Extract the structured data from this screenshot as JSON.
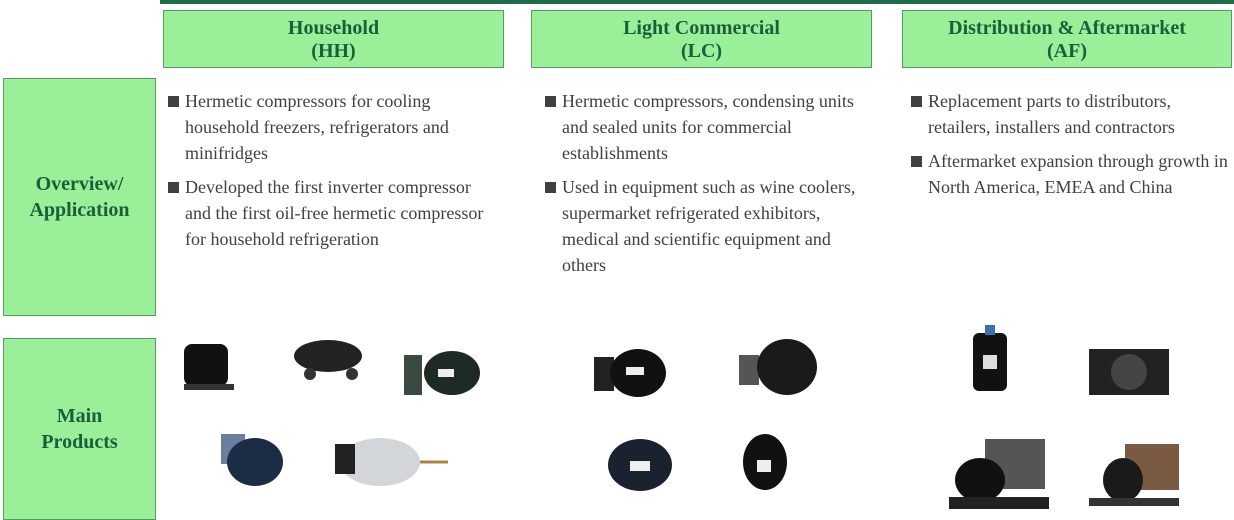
{
  "columns": [
    {
      "title": "Household",
      "code": "(HH)",
      "bullets": [
        "Hermetic compressors for cooling household freezers, refrigerators and minifridges",
        "Developed the first inverter compressor and the first oil-free hermetic compressor for household refrigeration"
      ]
    },
    {
      "title": "Light Commercial",
      "code": "(LC)",
      "bullets": [
        "Hermetic compressors, condensing units and sealed units for commercial establishments",
        "Used in equipment such as wine coolers, supermarket refrigerated exhibitors, medical and scientific equipment and others"
      ]
    },
    {
      "title": "Distribution & Aftermarket",
      "code": "(AF)",
      "bullets": [
        "Replacement parts to distributors, retailers, installers and contractors",
        "Aftermarket expansion through growth in North America, EMEA and China"
      ]
    }
  ],
  "rows": [
    {
      "lines": [
        "Overview/",
        "Application"
      ]
    },
    {
      "lines": [
        "Main",
        "Products"
      ]
    }
  ]
}
